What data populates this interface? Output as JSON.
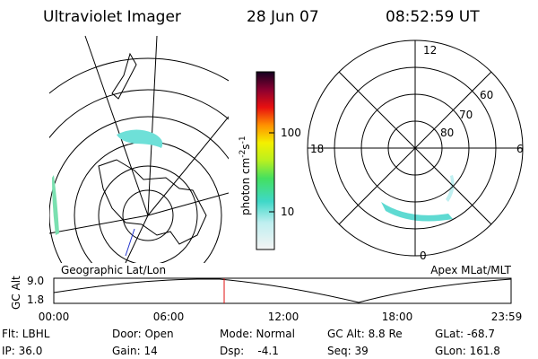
{
  "header": {
    "instrument": "Ultraviolet Imager",
    "date": "28 Jun 07",
    "time": "08:52:59 UT"
  },
  "colorbar": {
    "label": "photon cm",
    "label_sup1": "-2",
    "label_mid": "s",
    "label_sup2": "-1",
    "ticks": [
      "100",
      "10"
    ]
  },
  "polar": {
    "labels": {
      "top": "12",
      "right": "6",
      "left": "18",
      "bottom": "0"
    },
    "rings": [
      "60",
      "70",
      "80"
    ]
  },
  "timeline": {
    "left_label": "Geographic Lat/Lon",
    "right_label": "Apex MLat/MLT",
    "axis_label": "GC Alt",
    "y_labels": [
      "9.0",
      "1.8"
    ],
    "x_labels": [
      "00:00",
      "06:00",
      "12:00",
      "18:00",
      "23:59"
    ]
  },
  "footer": {
    "rows": [
      [
        "Flt: LBHL",
        "Door: Open",
        "Mode: Normal",
        "GC Alt: 8.8 Re",
        "GLat: -68.7"
      ],
      [
        "IP: 36.0",
        "Gain: 14",
        "Dsp:    -4.1",
        "Seq: 39",
        "GLon: 161.8"
      ]
    ]
  }
}
